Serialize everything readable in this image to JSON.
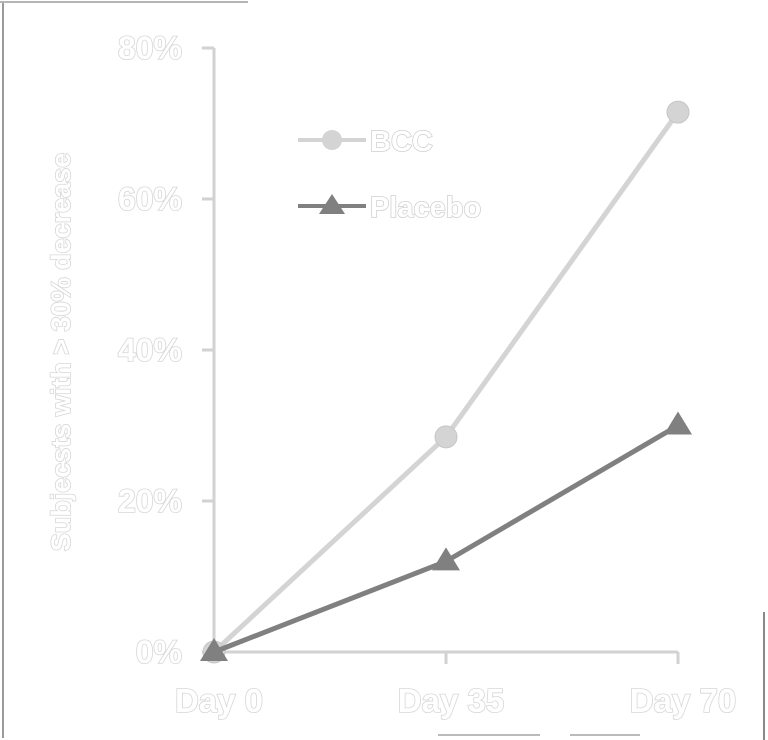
{
  "chart_data": {
    "type": "line",
    "title": "",
    "xlabel": "",
    "ylabel": "Subjecsts with > 30% decrease",
    "categories": [
      "Day 0",
      "Day 35",
      "Day 70"
    ],
    "y_ticks": [
      "0%",
      "20%",
      "40%",
      "60%",
      "80%"
    ],
    "ylim": [
      0,
      80
    ],
    "legend_position": "top-left",
    "series": [
      {
        "name": "BCC",
        "values": [
          0,
          28.5,
          71.5
        ],
        "marker": "circle",
        "color": "#d4d4d4"
      },
      {
        "name": "Placebo",
        "values": [
          0,
          12,
          30
        ],
        "marker": "triangle",
        "color": "#808080"
      }
    ]
  }
}
